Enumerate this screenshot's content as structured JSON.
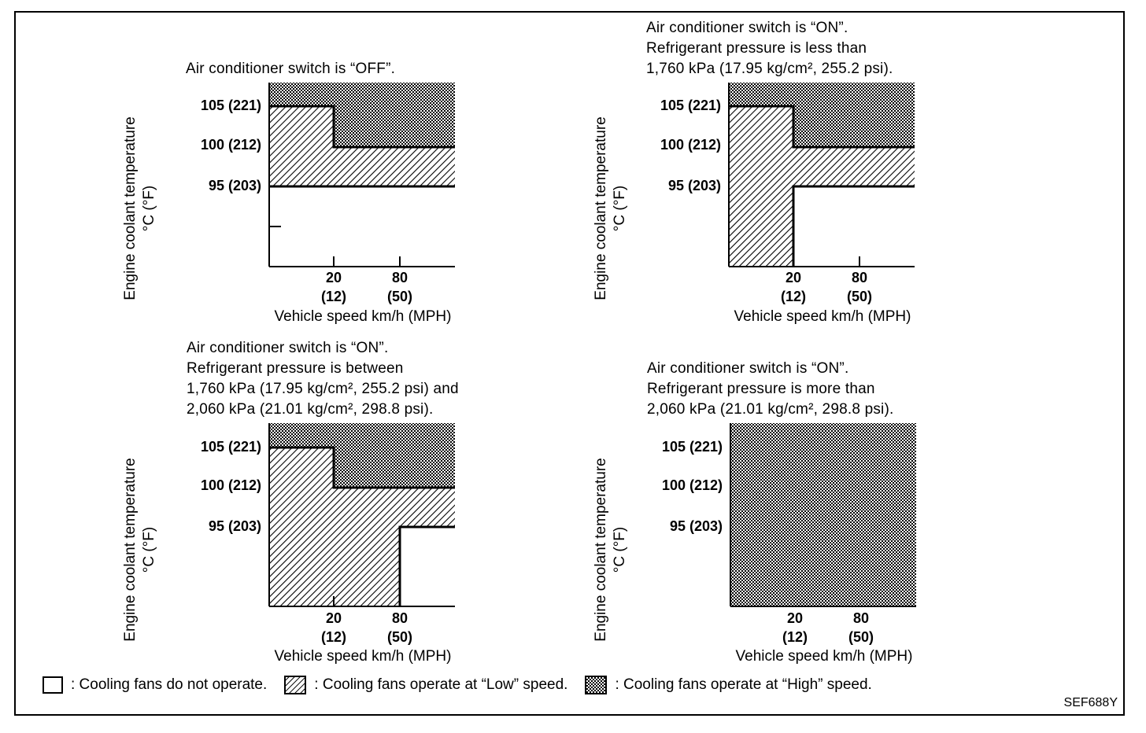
{
  "panels": [
    {
      "caption": [
        "Air conditioner switch is “OFF”."
      ],
      "ylabel": "Engine coolant temperature",
      "yunit": "°C (°F)",
      "yticks": [
        "105 (221)",
        "100 (212)",
        "95 (203)"
      ],
      "xticks": [
        {
          "top": "20",
          "bottom": "(12)"
        },
        {
          "top": "80",
          "bottom": "(50)"
        }
      ],
      "xlabel": "Vehicle speed km/h (MPH)",
      "regions": {
        "high": "temp ≥ 105, or temp ≥ 100 above 20 km/h",
        "low": "95–105 below 20 km/h; 95–100 above 20 km/h",
        "off": "below 95 °C"
      }
    },
    {
      "caption": [
        "Air conditioner switch is “ON”.",
        "Refrigerant pressure is less than",
        "1,760 kPa (17.95 kg/cm², 255.2 psi)."
      ],
      "ylabel": "Engine coolant temperature",
      "yunit": "°C (°F)",
      "yticks": [
        "105 (221)",
        "100 (212)",
        "95 (203)"
      ],
      "xticks": [
        {
          "top": "20",
          "bottom": "(12)"
        },
        {
          "top": "80",
          "bottom": "(50)"
        }
      ],
      "xlabel": "Vehicle speed km/h (MPH)",
      "regions": {
        "high": "temp ≥ 105, or temp ≥ 100 above 20 km/h",
        "low": "all temps below 20 km/h; 95–100 above 20 km/h",
        "off": "below 95 °C above 20 km/h"
      }
    },
    {
      "caption": [
        "Air conditioner switch is “ON”.",
        "Refrigerant pressure is between",
        "1,760 kPa (17.95 kg/cm², 255.2 psi) and",
        "2,060 kPa (21.01 kg/cm², 298.8 psi)."
      ],
      "ylabel": "Engine coolant temperature",
      "yunit": "°C (°F)",
      "yticks": [
        "105 (221)",
        "100 (212)",
        "95 (203)"
      ],
      "xticks": [
        {
          "top": "20",
          "bottom": "(12)"
        },
        {
          "top": "80",
          "bottom": "(50)"
        }
      ],
      "xlabel": "Vehicle speed km/h (MPH)",
      "regions": {
        "high": "temp ≥ 105, or temp ≥ 100 above 20 km/h",
        "low": "all temps below 80 km/h; 95–100 above 80 km/h",
        "off": "below 95 °C above 80 km/h"
      }
    },
    {
      "caption": [
        "Air conditioner switch is “ON”.",
        "Refrigerant pressure is more than",
        "2,060 kPa (21.01 kg/cm², 298.8 psi)."
      ],
      "ylabel": "Engine coolant temperature",
      "yunit": "°C (°F)",
      "yticks": [
        "105 (221)",
        "100 (212)",
        "95 (203)"
      ],
      "xticks": [
        {
          "top": "20",
          "bottom": "(12)"
        },
        {
          "top": "80",
          "bottom": "(50)"
        }
      ],
      "xlabel": "Vehicle speed km/h (MPH)",
      "regions": {
        "high": "entire chart",
        "low": "none",
        "off": "none"
      }
    }
  ],
  "legend": {
    "none": ": Cooling fans do not operate.",
    "low": ": Cooling fans operate at “Low” speed.",
    "high": ": Cooling fans operate at “High” speed."
  },
  "figure_code": "SEF688Y"
}
